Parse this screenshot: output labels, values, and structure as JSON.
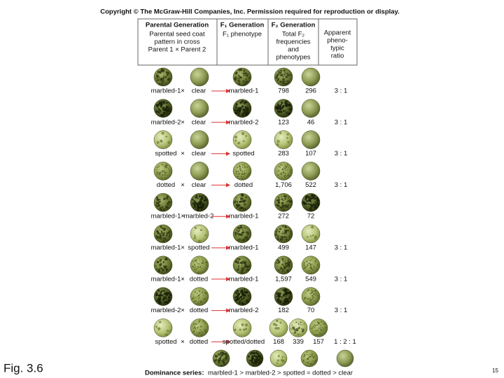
{
  "copyright": "Copyright © The McGraw-Hill Companies, Inc. Permission required for reproduction or display.",
  "header": {
    "parental_title": "Parental Generation",
    "parental_sub": [
      "Parental seed coat",
      "pattern in cross",
      "Parent 1 × Parent 2"
    ],
    "f1_title": "F₁ Generation",
    "f1_sub": [
      "F₁ phenotype"
    ],
    "f2_title": "F₂ Generation",
    "f2_sub": [
      "Total F₂",
      "frequencies",
      "and",
      "phenotypes"
    ],
    "ratio_title": [
      "Apparent",
      "pheno-",
      "typic",
      "ratio"
    ]
  },
  "cross_symbol": "×",
  "rows": [
    {
      "parent1": "marbled-1",
      "parent2": "clear",
      "f1": "marbled-1",
      "f2": [
        "798",
        "296"
      ],
      "ratio": "3 : 1"
    },
    {
      "parent1": "marbled-2",
      "parent2": "clear",
      "f1": "marbled-2",
      "f2": [
        "123",
        "46"
      ],
      "ratio": "3 : 1"
    },
    {
      "parent1": "spotted",
      "parent2": "clear",
      "f1": "spotted",
      "f2": [
        "283",
        "107"
      ],
      "ratio": "3 : 1"
    },
    {
      "parent1": "dotted",
      "parent2": "clear",
      "f1": "dotted",
      "f2": [
        "1,706",
        "522"
      ],
      "ratio": "3 : 1"
    },
    {
      "parent1": "marbled-1",
      "parent2": "marbled-2",
      "f1": "marbled-1",
      "f2": [
        "272",
        "72"
      ]
    },
    {
      "parent1": "marbled-1",
      "parent2": "spotted",
      "f1": "marbled-1",
      "f2": [
        "499",
        "147"
      ],
      "ratio": "3 : 1"
    },
    {
      "parent1": "marbled-1",
      "parent2": "dotted",
      "f1": "marbled-1",
      "f2": [
        "1,597",
        "549"
      ],
      "ratio": "3 : 1"
    },
    {
      "parent1": "marbled-2",
      "parent2": "dotted",
      "f1": "marbled-2",
      "f2": [
        "182",
        "70"
      ],
      "ratio": "3 : 1"
    },
    {
      "parent1": "spotted",
      "parent2": "dotted",
      "f1": "spotted/dotted",
      "f2": [
        "168",
        "339",
        "157"
      ],
      "ratio": "1 : 2 : 1"
    }
  ],
  "dominance": {
    "label": "Dominance series:",
    "text": "marbled-1 > marbled-2 > spotted = dotted > clear"
  },
  "figure_label": "Fig. 3.6",
  "page_number": "15"
}
